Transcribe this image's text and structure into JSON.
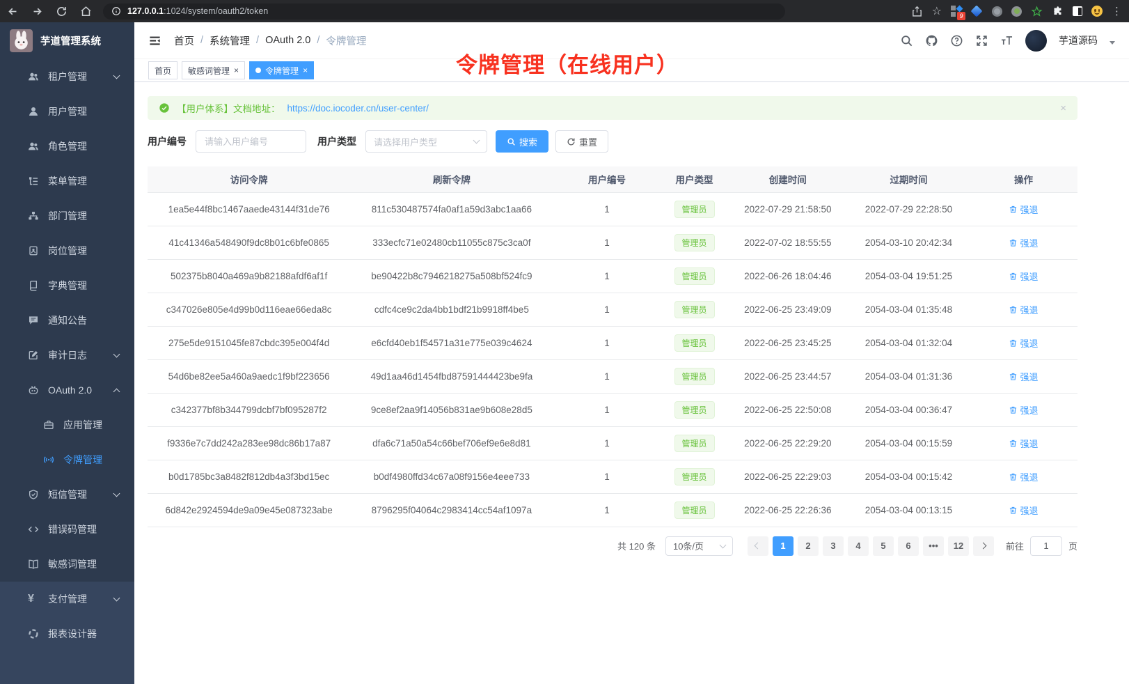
{
  "browser": {
    "url_host": "127.0.0.1",
    "url_path": ":1024/system/oauth2/token",
    "extension_badge": "9"
  },
  "app": {
    "title": "芋道管理系统"
  },
  "breadcrumb": [
    "首页",
    "系统管理",
    "OAuth 2.0",
    "令牌管理"
  ],
  "annotation": {
    "text": "令牌管理（在线用户）"
  },
  "user_menu": {
    "name": "芋道源码"
  },
  "tabs": [
    {
      "label": "首页",
      "closable": false,
      "active": false
    },
    {
      "label": "敏感词管理",
      "closable": true,
      "active": false
    },
    {
      "label": "令牌管理",
      "closable": true,
      "active": true
    }
  ],
  "tab_close_glyph": "×",
  "sidebar": {
    "items": [
      {
        "label": "租户管理",
        "icon": "tenant-icon",
        "chevron": "down"
      },
      {
        "label": "用户管理",
        "icon": "user-icon"
      },
      {
        "label": "角色管理",
        "icon": "role-icon"
      },
      {
        "label": "菜单管理",
        "icon": "menu-tree-icon"
      },
      {
        "label": "部门管理",
        "icon": "dept-icon"
      },
      {
        "label": "岗位管理",
        "icon": "post-icon"
      },
      {
        "label": "字典管理",
        "icon": "dict-icon"
      },
      {
        "label": "通知公告",
        "icon": "notice-icon"
      },
      {
        "label": "审计日志",
        "icon": "audit-icon",
        "chevron": "down"
      },
      {
        "label": "OAuth 2.0",
        "icon": "oauth-icon",
        "chevron": "up"
      },
      {
        "label": "应用管理",
        "icon": "app-icon",
        "sub": true
      },
      {
        "label": "令牌管理",
        "icon": "token-icon",
        "sub": true,
        "active": true
      },
      {
        "label": "短信管理",
        "icon": "sms-icon",
        "chevron": "down"
      },
      {
        "label": "错误码管理",
        "icon": "errcode-icon"
      },
      {
        "label": "敏感词管理",
        "icon": "sensitive-icon"
      },
      {
        "label": "支付管理",
        "icon": "pay-icon",
        "chevron": "down",
        "section": 2
      },
      {
        "label": "报表设计器",
        "icon": "report-icon",
        "section": 2
      }
    ]
  },
  "alert": {
    "text": "【用户体系】文档地址：",
    "link": "https://doc.iocoder.cn/user-center/",
    "close_glyph": "×"
  },
  "filters": {
    "user_id_label": "用户编号",
    "user_id_placeholder": "请输入用户编号",
    "user_type_label": "用户类型",
    "user_type_placeholder": "请选择用户类型",
    "search_label": "搜索",
    "reset_label": "重置"
  },
  "table": {
    "columns": [
      "访问令牌",
      "刷新令牌",
      "用户编号",
      "用户类型",
      "创建时间",
      "过期时间",
      "操作"
    ],
    "action_label": "强退",
    "rows": [
      {
        "access": "1ea5e44f8bc1467aaede43144f31de76",
        "refresh": "811c530487574fa0af1a59d3abc1aa66",
        "user_id": "1",
        "user_type": "管理员",
        "created": "2022-07-29 21:58:50",
        "expires": "2022-07-29 22:28:50"
      },
      {
        "access": "41c41346a548490f9dc8b01c6bfe0865",
        "refresh": "333ecfc71e02480cb11055c875c3ca0f",
        "user_id": "1",
        "user_type": "管理员",
        "created": "2022-07-02 18:55:55",
        "expires": "2054-03-10 20:42:34"
      },
      {
        "access": "502375b8040a469a9b82188afdf6af1f",
        "refresh": "be90422b8c7946218275a508bf524fc9",
        "user_id": "1",
        "user_type": "管理员",
        "created": "2022-06-26 18:04:46",
        "expires": "2054-03-04 19:51:25"
      },
      {
        "access": "c347026e805e4d99b0d116eae66eda8c",
        "refresh": "cdfc4ce9c2da4bb1bdf21b9918ff4be5",
        "user_id": "1",
        "user_type": "管理员",
        "created": "2022-06-25 23:49:09",
        "expires": "2054-03-04 01:35:48"
      },
      {
        "access": "275e5de9151045fe87cbdc395e004f4d",
        "refresh": "e6cfd40eb1f54571a31e775e039c4624",
        "user_id": "1",
        "user_type": "管理员",
        "created": "2022-06-25 23:45:25",
        "expires": "2054-03-04 01:32:04"
      },
      {
        "access": "54d6be82ee5a460a9aedc1f9bf223656",
        "refresh": "49d1aa46d1454fbd87591444423be9fa",
        "user_id": "1",
        "user_type": "管理员",
        "created": "2022-06-25 23:44:57",
        "expires": "2054-03-04 01:31:36"
      },
      {
        "access": "c342377bf8b344799dcbf7bf095287f2",
        "refresh": "9ce8ef2aa9f14056b831ae9b608e28d5",
        "user_id": "1",
        "user_type": "管理员",
        "created": "2022-06-25 22:50:08",
        "expires": "2054-03-04 00:36:47"
      },
      {
        "access": "f9336e7c7dd242a283ee98dc86b17a87",
        "refresh": "dfa6c71a50a54c66bef706ef9e6e8d81",
        "user_id": "1",
        "user_type": "管理员",
        "created": "2022-06-25 22:29:20",
        "expires": "2054-03-04 00:15:59"
      },
      {
        "access": "b0d1785bc3a8482f812db4a3f3bd15ec",
        "refresh": "b0df4980ffd34c67a08f9156e4eee733",
        "user_id": "1",
        "user_type": "管理员",
        "created": "2022-06-25 22:29:03",
        "expires": "2054-03-04 00:15:42"
      },
      {
        "access": "6d842e2924594de9a09e45e087323abe",
        "refresh": "8796295f04064c2983414cc54af1097a",
        "user_id": "1",
        "user_type": "管理员",
        "created": "2022-06-25 22:26:36",
        "expires": "2054-03-04 00:13:15"
      }
    ]
  },
  "pagination": {
    "total": "共 120 条",
    "page_size": "10条/页",
    "pages": [
      "1",
      "2",
      "3",
      "4",
      "5",
      "6",
      "•••",
      "12"
    ],
    "active": "1",
    "goto_label": "前往",
    "goto_value": "1",
    "page_suffix": "页"
  },
  "colors": {
    "accent": "#409eff",
    "success": "#67c23a",
    "sidebar_bg": "#2d3a4e",
    "sidebar_bg_light": "#36455e",
    "annotation_red": "#f8311f"
  }
}
